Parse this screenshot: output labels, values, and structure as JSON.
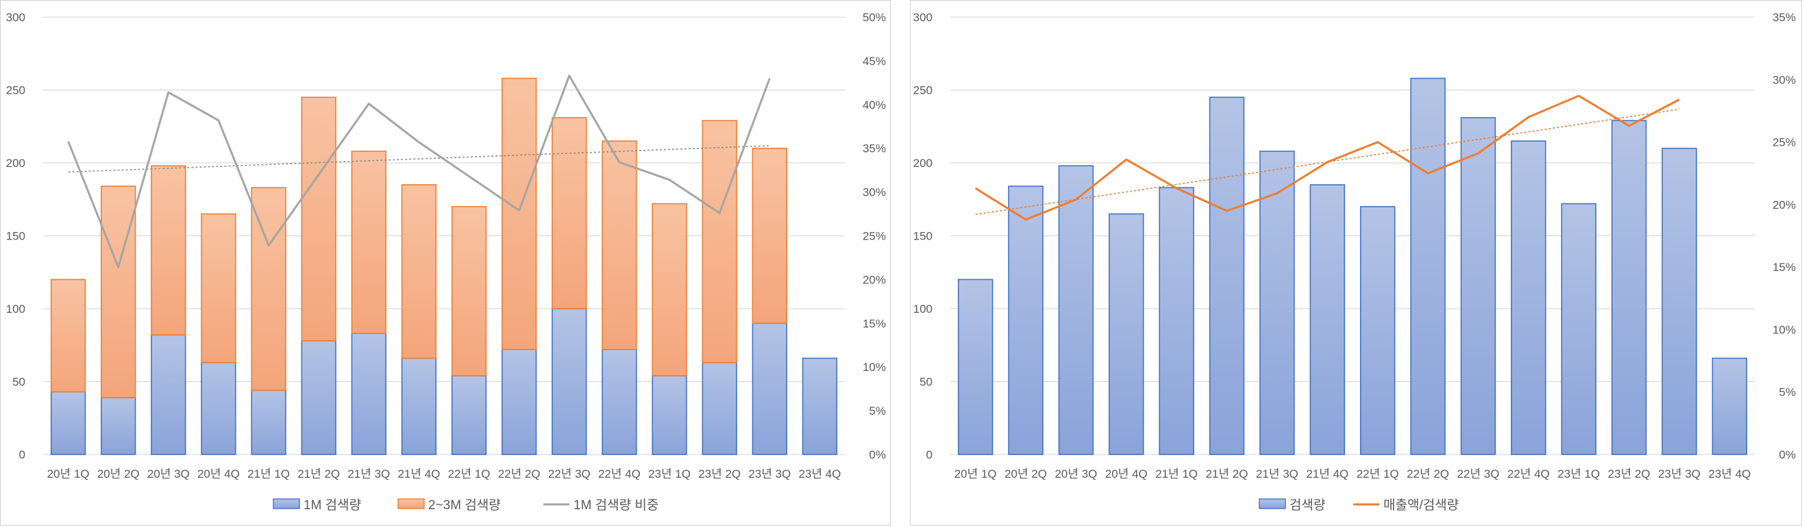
{
  "chart_data": [
    {
      "type": "bar",
      "stacked": true,
      "categories": [
        "20년 1Q",
        "20년 2Q",
        "20년 3Q",
        "20년 4Q",
        "21년 1Q",
        "21년 2Q",
        "21년 3Q",
        "21년 4Q",
        "22년 1Q",
        "22년 2Q",
        "22년 3Q",
        "22년 4Q",
        "23년 1Q",
        "23년 2Q",
        "23년 3Q",
        "23년 4Q"
      ],
      "series": [
        {
          "name": "1M 검색량",
          "kind": "bar",
          "axis": "left",
          "color": "#8faadc",
          "border": "#4472c4",
          "values": [
            43,
            39,
            82,
            63,
            44,
            78,
            83,
            66,
            54,
            72,
            100,
            72,
            54,
            63,
            90,
            66
          ]
        },
        {
          "name": "2~3M 검색량",
          "kind": "bar",
          "axis": "left",
          "color": "#f4b183",
          "border": "#ed7d31",
          "values": [
            77,
            145,
            116,
            102,
            139,
            167,
            125,
            119,
            116,
            186,
            131,
            143,
            118,
            166,
            120,
            null
          ]
        },
        {
          "name": "1M 검색량 비중",
          "kind": "line",
          "axis": "right",
          "color": "#a5a5a5",
          "values": [
            35.8,
            21.4,
            41.4,
            38.2,
            23.9,
            32.0,
            40.1,
            35.7,
            31.8,
            27.9,
            43.3,
            33.4,
            31.4,
            27.6,
            43.0,
            null
          ],
          "trendline": "linear"
        }
      ],
      "ylim_left": [
        0,
        300
      ],
      "yticks_left": [
        0,
        50,
        100,
        150,
        200,
        250,
        300
      ],
      "ylim_right": [
        0,
        50
      ],
      "yticks_right": [
        "0%",
        "5%",
        "10%",
        "15%",
        "20%",
        "25%",
        "30%",
        "35%",
        "40%",
        "45%",
        "50%"
      ],
      "grid": true,
      "legend_position": "bottom"
    },
    {
      "type": "bar",
      "categories": [
        "20년 1Q",
        "20년 2Q",
        "20년 3Q",
        "20년 4Q",
        "21년 1Q",
        "21년 2Q",
        "21년 3Q",
        "21년 4Q",
        "22년 1Q",
        "22년 2Q",
        "22년 3Q",
        "22년 4Q",
        "23년 1Q",
        "23년 2Q",
        "23년 3Q",
        "23년 4Q"
      ],
      "series": [
        {
          "name": "검색량",
          "kind": "bar",
          "axis": "left",
          "color": "#8faadc",
          "border": "#4472c4",
          "values": [
            120,
            184,
            198,
            165,
            183,
            245,
            208,
            185,
            170,
            258,
            231,
            215,
            172,
            229,
            210,
            66
          ]
        },
        {
          "name": "매출액/검색량",
          "kind": "line",
          "axis": "right",
          "color": "#ed7d31",
          "values": [
            21.3,
            18.8,
            20.4,
            23.6,
            21.3,
            19.5,
            20.9,
            23.4,
            25.0,
            22.5,
            24.1,
            27.0,
            28.7,
            26.3,
            28.4,
            null
          ],
          "trendline": "linear"
        }
      ],
      "ylim_left": [
        0,
        300
      ],
      "yticks_left": [
        0,
        50,
        100,
        150,
        200,
        250,
        300
      ],
      "ylim_right": [
        0,
        35
      ],
      "yticks_right": [
        "0%",
        "5%",
        "10%",
        "15%",
        "20%",
        "25%",
        "30%",
        "35%"
      ],
      "grid": true,
      "legend_position": "bottom"
    }
  ]
}
